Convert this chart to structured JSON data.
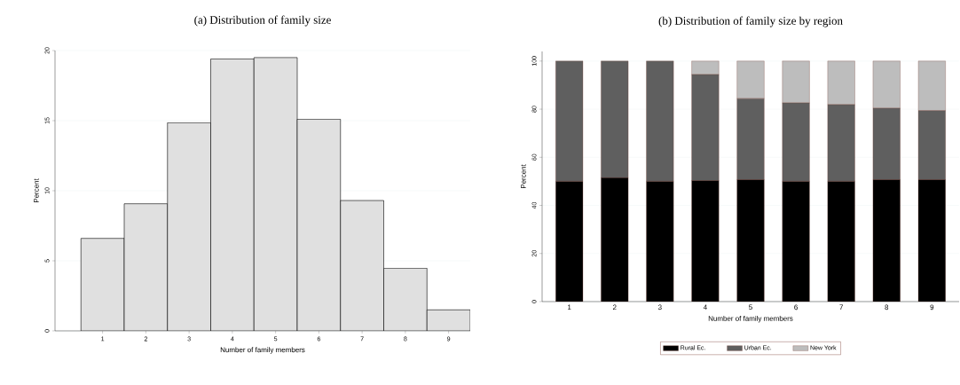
{
  "chart_data": [
    {
      "type": "histogram",
      "title": "(a) Distribution of family size",
      "xlabel": "Number of family members",
      "ylabel": "Percent",
      "bins": [
        0.5,
        1.5,
        2.5,
        3.5,
        4.5,
        5.5,
        6.5,
        7.5,
        8.5,
        9.5
      ],
      "values": [
        6.6,
        9.07,
        14.85,
        19.4,
        19.5,
        15.1,
        9.3,
        4.47,
        1.5
      ],
      "color": "#e0e0e0",
      "xlim": [
        -0.1,
        9.5
      ],
      "xticks": [
        1,
        2,
        3,
        4,
        5,
        6,
        7,
        8,
        9
      ],
      "ylim": [
        0,
        20
      ],
      "yticks": [
        0,
        5,
        10,
        15,
        20
      ],
      "grid": "y"
    },
    {
      "type": "bar",
      "stacked": true,
      "title": "(b) Distribution of family size by region",
      "xlabel": "Number of family members",
      "ylabel": "Percent",
      "categories": [
        "1",
        "2",
        "3",
        "4",
        "5",
        "6",
        "7",
        "8",
        "9"
      ],
      "series": [
        {
          "name": "Rural Ec.",
          "color": "#000000",
          "values": [
            50,
            51.5,
            50,
            50.3,
            50.7,
            50,
            50,
            50.7,
            50.7
          ]
        },
        {
          "name": "Urban Ec.",
          "color": "#5f5f5f",
          "values": [
            50,
            48.5,
            50,
            44.1,
            33.7,
            32.6,
            31.9,
            29.7,
            28.7
          ]
        },
        {
          "name": "New York",
          "color": "#bdbdbd",
          "values": [
            0,
            0,
            0,
            5.6,
            15.6,
            17.4,
            18.1,
            19.6,
            20.6
          ]
        }
      ],
      "ylim": [
        0,
        104
      ],
      "yticks": [
        0,
        20,
        40,
        60,
        80,
        100
      ],
      "grid": "y",
      "legend": "bottom"
    }
  ]
}
